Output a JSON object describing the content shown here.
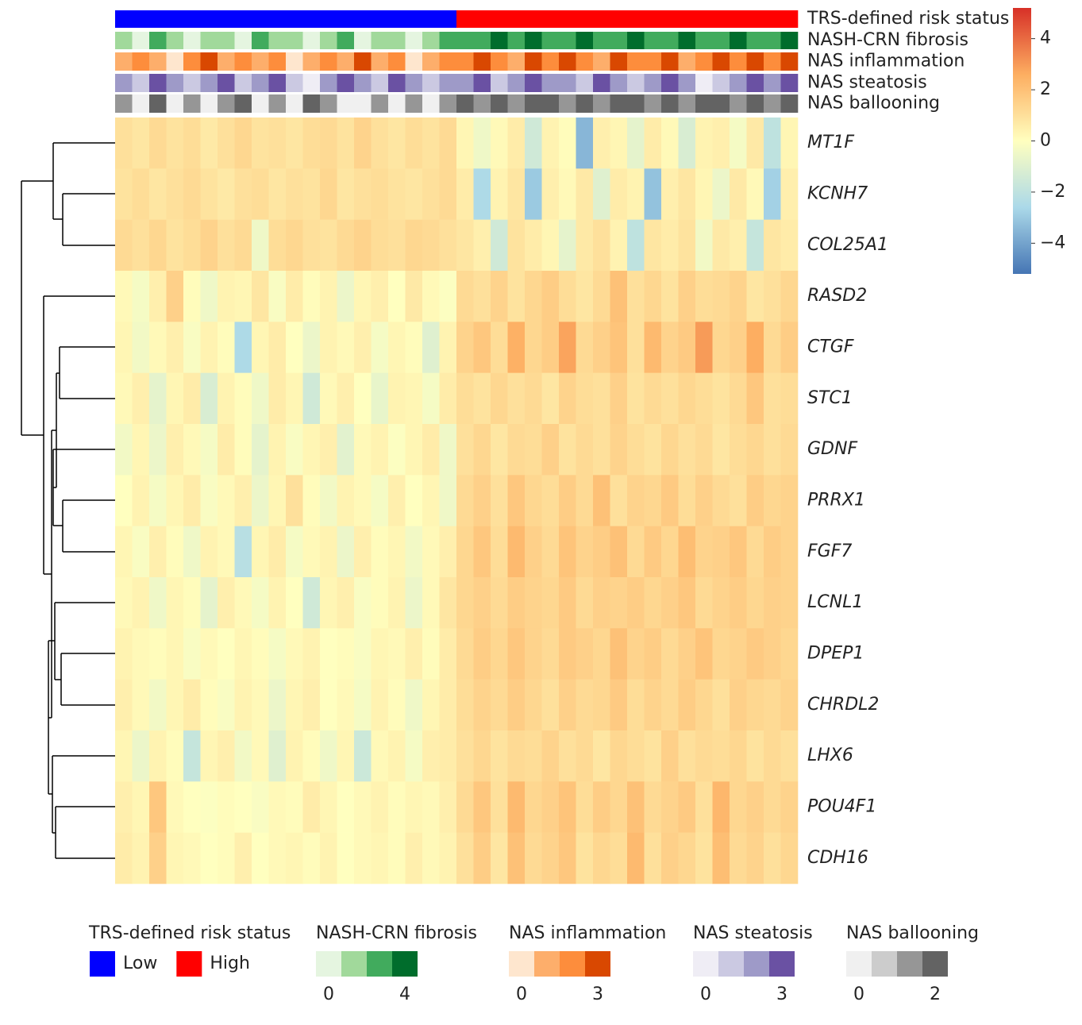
{
  "chart_data": {
    "type": "heatmap",
    "rows": [
      "MT1F",
      "KCNH7",
      "COL25A1",
      "RASD2",
      "CTGF",
      "STC1",
      "GDNF",
      "PRRX1",
      "FGF7",
      "LCNL1",
      "DPEP1",
      "CHRDL2",
      "LHX6",
      "POU4F1",
      "CDH16"
    ],
    "values": [
      [
        1.0,
        0.8,
        1.2,
        0.9,
        1.1,
        0.7,
        1.0,
        1.3,
        0.9,
        1.0,
        0.8,
        1.1,
        1.2,
        0.9,
        1.4,
        1.0,
        0.8,
        1.1,
        0.9,
        1.2,
        0.3,
        -0.5,
        0.2,
        0.6,
        -1.5,
        0.4,
        0.1,
        -3.5,
        0.5,
        0.3,
        -0.8,
        0.6,
        0.2,
        -1.2,
        0.4,
        0.5,
        -0.3,
        0.7,
        -2.0,
        0.3
      ],
      [
        0.9,
        1.1,
        0.8,
        1.0,
        1.2,
        0.9,
        0.7,
        1.0,
        1.1,
        0.8,
        1.0,
        0.9,
        1.3,
        0.8,
        1.0,
        1.1,
        0.9,
        0.8,
        1.0,
        1.2,
        0.6,
        -2.5,
        0.4,
        0.8,
        -3.0,
        0.5,
        0.2,
        0.7,
        -1.0,
        0.6,
        0.4,
        -3.2,
        0.5,
        0.8,
        0.3,
        -0.6,
        0.7,
        0.2,
        -2.8,
        0.5
      ],
      [
        1.2,
        1.0,
        1.3,
        0.9,
        1.1,
        1.4,
        1.0,
        1.2,
        -0.5,
        1.1,
        1.3,
        1.0,
        0.9,
        1.2,
        1.4,
        1.1,
        1.0,
        1.3,
        1.2,
        1.0,
        0.8,
        0.5,
        -1.5,
        0.9,
        0.6,
        0.3,
        -0.8,
        0.7,
        1.0,
        0.4,
        -2.0,
        0.8,
        0.6,
        0.9,
        -0.4,
        0.7,
        0.5,
        -1.8,
        0.8,
        0.6
      ],
      [
        0.2,
        -0.3,
        0.5,
        1.5,
        0.1,
        -0.5,
        0.4,
        0.3,
        0.8,
        -0.2,
        0.6,
        0.1,
        0.4,
        -0.6,
        0.3,
        0.5,
        0.0,
        0.7,
        0.2,
        -0.1,
        1.2,
        1.0,
        1.4,
        0.9,
        1.3,
        1.6,
        1.1,
        0.8,
        1.2,
        2.0,
        1.0,
        1.3,
        0.9,
        1.5,
        1.1,
        1.2,
        1.4,
        0.8,
        1.0,
        1.3
      ],
      [
        0.3,
        -0.4,
        0.2,
        0.5,
        -0.2,
        0.4,
        0.1,
        -2.5,
        0.3,
        0.6,
        0.0,
        -0.6,
        0.4,
        0.2,
        0.5,
        -0.3,
        0.3,
        0.1,
        -1.0,
        0.4,
        1.4,
        1.8,
        1.1,
        2.5,
        1.3,
        1.6,
        2.8,
        1.2,
        1.5,
        1.9,
        1.0,
        2.2,
        1.4,
        1.7,
        3.0,
        1.3,
        1.5,
        2.6,
        1.2,
        1.6
      ],
      [
        0.2,
        0.5,
        -0.8,
        0.3,
        0.6,
        -1.2,
        0.4,
        0.1,
        -0.5,
        0.6,
        0.3,
        -1.5,
        0.2,
        0.5,
        0.0,
        -0.7,
        0.4,
        0.3,
        -0.3,
        0.6,
        1.1,
        0.9,
        1.3,
        1.0,
        1.2,
        0.8,
        1.4,
        1.1,
        1.0,
        1.5,
        0.9,
        1.2,
        1.0,
        1.3,
        1.1,
        0.9,
        1.2,
        1.8,
        1.0,
        1.1
      ],
      [
        -0.4,
        0.3,
        -0.6,
        0.5,
        0.2,
        -0.3,
        0.6,
        0.1,
        -0.8,
        0.4,
        -0.2,
        0.3,
        0.5,
        -0.9,
        0.2,
        0.4,
        -0.1,
        0.3,
        0.6,
        -0.5,
        1.0,
        1.3,
        0.8,
        1.2,
        1.1,
        1.5,
        0.9,
        1.2,
        1.0,
        1.4,
        1.1,
        0.9,
        1.3,
        1.0,
        1.2,
        0.8,
        1.1,
        1.3,
        1.0,
        1.2
      ],
      [
        0.0,
        0.4,
        -0.3,
        0.3,
        0.6,
        -0.2,
        0.2,
        0.5,
        -0.6,
        0.3,
        1.0,
        0.1,
        -0.4,
        0.4,
        0.2,
        -0.3,
        0.5,
        0.0,
        0.3,
        -0.5,
        1.2,
        1.5,
        1.0,
        1.8,
        1.3,
        1.1,
        1.6,
        1.2,
        2.0,
        1.0,
        1.4,
        1.3,
        1.7,
        1.1,
        1.5,
        1.2,
        1.0,
        1.6,
        1.3,
        1.4
      ],
      [
        0.3,
        -0.2,
        0.5,
        0.1,
        -0.5,
        0.4,
        0.2,
        -2.2,
        0.3,
        0.6,
        -0.3,
        0.2,
        0.4,
        -0.6,
        0.5,
        0.1,
        0.3,
        -0.4,
        0.2,
        0.5,
        1.3,
        1.8,
        1.1,
        2.2,
        1.5,
        1.2,
        1.9,
        1.4,
        1.6,
        2.0,
        1.2,
        1.7,
        1.3,
        2.1,
        1.4,
        1.5,
        1.8,
        1.2,
        1.6,
        1.4
      ],
      [
        0.2,
        0.4,
        -0.5,
        0.3,
        0.1,
        -0.8,
        0.5,
        0.2,
        -0.3,
        0.4,
        0.0,
        -1.5,
        0.3,
        0.5,
        -0.2,
        0.1,
        0.4,
        -0.6,
        0.2,
        0.8,
        1.3,
        1.5,
        1.2,
        1.6,
        1.4,
        1.3,
        1.7,
        1.2,
        1.5,
        1.4,
        1.6,
        1.3,
        1.5,
        1.8,
        1.2,
        1.4,
        1.6,
        1.3,
        1.5,
        1.4
      ],
      [
        0.4,
        0.2,
        0.1,
        0.3,
        -0.2,
        0.2,
        0.0,
        0.3,
        0.1,
        -0.3,
        0.2,
        0.4,
        0.0,
        0.1,
        -0.2,
        0.3,
        0.2,
        0.5,
        0.1,
        0.6,
        1.2,
        1.6,
        1.3,
        1.8,
        1.4,
        1.2,
        1.7,
        1.5,
        1.3,
        2.0,
        1.4,
        1.6,
        1.2,
        1.5,
        1.9,
        1.3,
        1.4,
        1.7,
        1.5,
        1.3
      ],
      [
        0.5,
        0.2,
        -0.4,
        0.3,
        0.6,
        0.1,
        -0.2,
        0.4,
        0.2,
        -0.6,
        0.3,
        0.5,
        0.0,
        0.2,
        -0.3,
        0.4,
        0.1,
        -0.5,
        0.3,
        0.6,
        1.1,
        1.4,
        1.2,
        1.6,
        1.3,
        1.0,
        1.5,
        1.2,
        1.3,
        1.7,
        1.1,
        1.4,
        1.2,
        1.6,
        1.3,
        1.0,
        1.5,
        1.3,
        1.2,
        1.4
      ],
      [
        0.3,
        -0.6,
        0.4,
        0.1,
        -1.8,
        0.3,
        0.5,
        -0.4,
        0.2,
        -1.0,
        0.4,
        0.1,
        -0.5,
        0.3,
        -1.6,
        0.2,
        0.4,
        -0.3,
        0.5,
        0.6,
        1.0,
        1.3,
        0.9,
        1.2,
        1.1,
        1.4,
        1.0,
        1.2,
        0.8,
        1.3,
        1.1,
        0.9,
        1.5,
        1.0,
        1.2,
        1.1,
        1.3,
        0.9,
        1.2,
        1.0
      ],
      [
        0.5,
        0.3,
        1.8,
        0.2,
        0.0,
        -0.1,
        0.1,
        0.0,
        -0.2,
        0.2,
        0.1,
        0.6,
        0.3,
        0.0,
        0.2,
        0.4,
        0.1,
        0.3,
        0.2,
        0.5,
        1.2,
        1.8,
        1.0,
        2.2,
        1.3,
        1.5,
        1.9,
        1.1,
        1.6,
        1.3,
        2.0,
        1.2,
        1.4,
        1.7,
        1.0,
        2.3,
        1.3,
        1.5,
        1.2,
        1.4
      ],
      [
        0.6,
        0.4,
        1.5,
        0.3,
        0.2,
        0.0,
        0.1,
        0.5,
        0.0,
        0.2,
        0.3,
        0.1,
        0.4,
        0.0,
        0.2,
        0.3,
        0.1,
        0.5,
        0.2,
        0.4,
        1.0,
        1.6,
        0.8,
        2.0,
        1.2,
        1.4,
        1.8,
        0.9,
        1.3,
        1.1,
        2.2,
        1.0,
        1.5,
        1.3,
        0.9,
        2.1,
        1.2,
        1.4,
        1.0,
        1.3
      ]
    ],
    "clim": [
      -5.2,
      5.2
    ],
    "colorscale": [
      "#4575b4",
      "#abd9e9",
      "#ffffbf",
      "#fdae61",
      "#d73027"
    ],
    "colorbar_ticks": [
      {
        "value": 4,
        "label": "4"
      },
      {
        "value": 2,
        "label": "2"
      },
      0,
      {
        "value": -2,
        "label": "−2"
      },
      {
        "value": -4,
        "label": "−4"
      }
    ],
    "annotations": [
      {
        "name": "TRS-defined risk status",
        "categories": [
          "Low",
          "High"
        ],
        "colors": [
          "#0000ff",
          "#ff0000"
        ],
        "values": [
          0,
          0,
          0,
          0,
          0,
          0,
          0,
          0,
          0,
          0,
          0,
          0,
          0,
          0,
          0,
          0,
          0,
          0,
          0,
          0,
          1,
          1,
          1,
          1,
          1,
          1,
          1,
          1,
          1,
          1,
          1,
          1,
          1,
          1,
          1,
          1,
          1,
          1,
          1,
          1
        ]
      },
      {
        "name": "NASH-CRN fibrosis",
        "colors": [
          "#e5f5e0",
          "#a1d99b",
          "#41ab5d",
          "#006d2c"
        ],
        "lim": [
          0,
          4
        ],
        "ticks": [
          0,
          4
        ],
        "values": [
          1,
          0,
          2,
          1,
          0,
          1,
          1,
          0,
          2,
          1,
          1,
          0,
          1,
          2,
          0,
          1,
          1,
          0,
          1,
          2,
          3,
          2,
          4,
          3,
          4,
          2,
          3,
          4,
          3,
          2,
          4,
          3,
          3,
          4,
          2,
          3,
          4,
          3,
          2,
          4
        ]
      },
      {
        "name": "NAS inflammation",
        "colors": [
          "#fee6ce",
          "#fdae6b",
          "#fd8d3c",
          "#d94801"
        ],
        "lim": [
          0,
          3
        ],
        "ticks": [
          0,
          3
        ],
        "values": [
          1,
          2,
          1,
          0,
          2,
          3,
          1,
          2,
          1,
          2,
          0,
          1,
          2,
          1,
          3,
          1,
          2,
          0,
          1,
          2,
          2,
          3,
          2,
          1,
          3,
          2,
          3,
          2,
          1,
          3,
          2,
          2,
          3,
          1,
          2,
          3,
          2,
          3,
          2,
          3
        ]
      },
      {
        "name": "NAS steatosis",
        "colors": [
          "#efedf5",
          "#cbc9e2",
          "#9e9ac8",
          "#6a51a3"
        ],
        "lim": [
          0,
          3
        ],
        "ticks": [
          0,
          3
        ],
        "values": [
          2,
          1,
          3,
          2,
          1,
          2,
          3,
          1,
          2,
          3,
          1,
          0,
          2,
          3,
          2,
          1,
          3,
          2,
          1,
          2,
          2,
          3,
          1,
          2,
          3,
          2,
          2,
          1,
          3,
          2,
          1,
          2,
          3,
          2,
          0,
          1,
          2,
          3,
          2,
          3
        ]
      },
      {
        "name": "NAS ballooning",
        "colors": [
          "#f0f0f0",
          "#cccccc",
          "#969696",
          "#636363"
        ],
        "lim": [
          0,
          2
        ],
        "ticks": [
          0,
          2
        ],
        "values": [
          1,
          0,
          2,
          0,
          1,
          0,
          1,
          2,
          0,
          1,
          0,
          2,
          1,
          0,
          0,
          1,
          0,
          1,
          0,
          1,
          2,
          1,
          2,
          1,
          2,
          2,
          1,
          2,
          1,
          2,
          2,
          1,
          2,
          1,
          2,
          2,
          1,
          2,
          1,
          2
        ]
      }
    ]
  }
}
